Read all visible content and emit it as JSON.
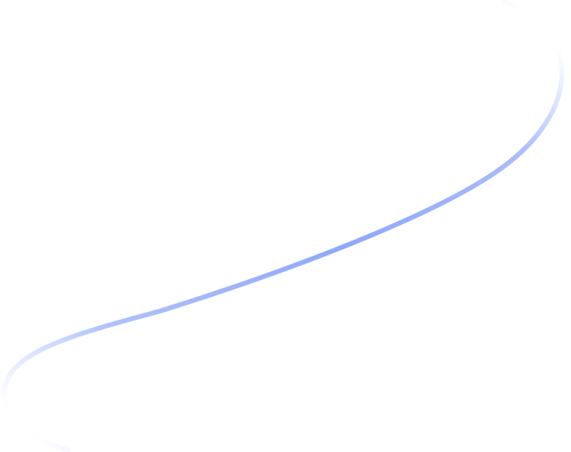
{
  "decoration": {
    "type": "curved-line",
    "stroke_color": "#8fa8f8",
    "background_color": "#ffffff"
  }
}
